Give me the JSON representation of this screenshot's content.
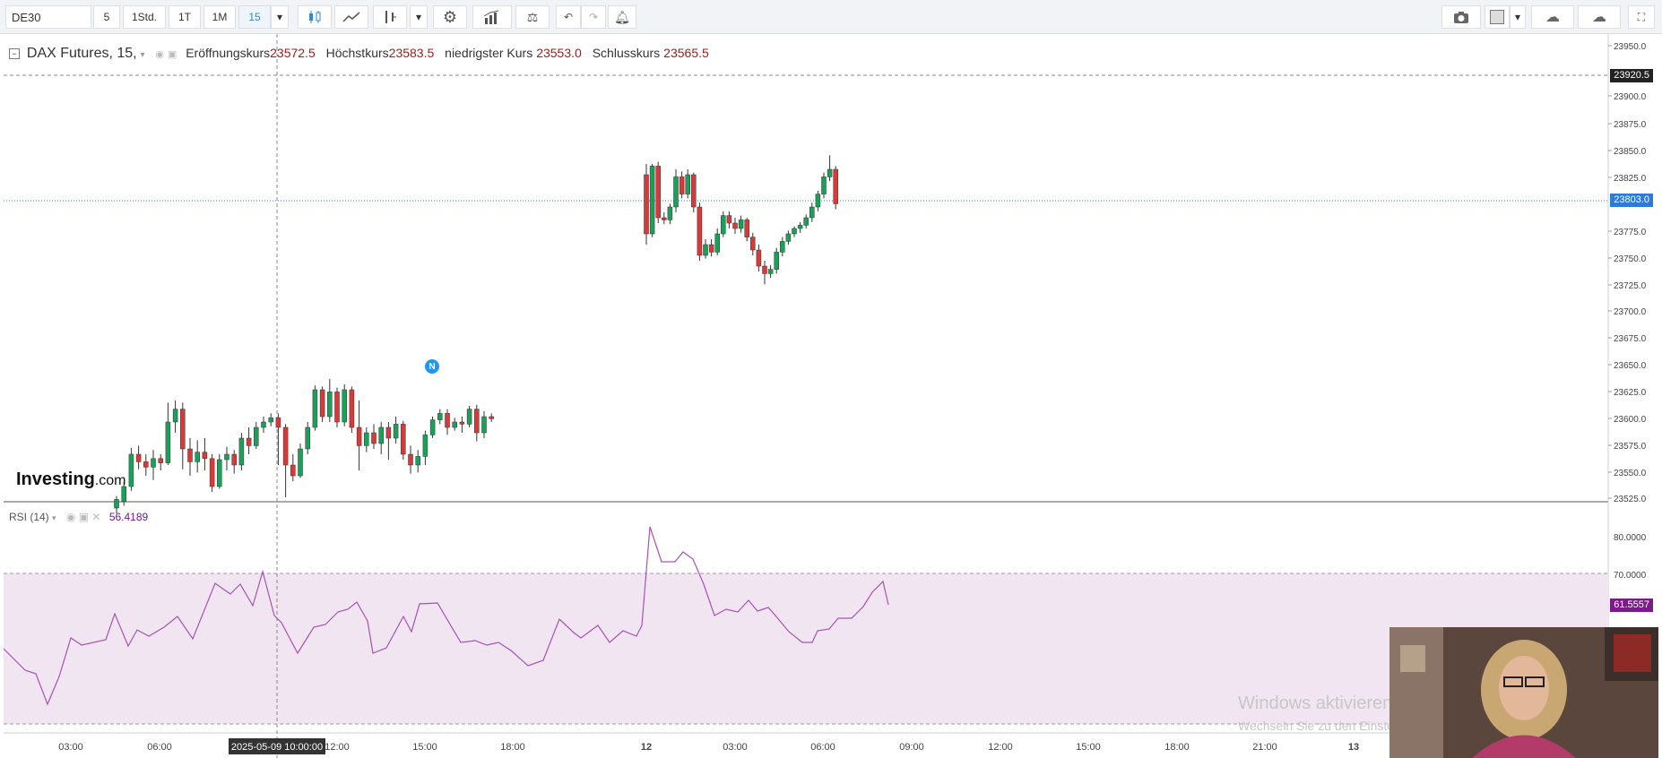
{
  "toolbar": {
    "symbol": "DE30",
    "intervals": [
      "5",
      "1Std.",
      "1T",
      "1M",
      "15"
    ],
    "active_interval": "15"
  },
  "legend": {
    "title": "DAX Futures, 15,",
    "open_label": "Eröffnungskurs",
    "open_value": "23572.5",
    "high_label": "Höchstkurs",
    "high_value": "23583.5",
    "low_label": "niedrigster Kurs",
    "low_value": "23553.0",
    "close_label": "Schlusskurs",
    "close_value": "23565.5"
  },
  "rsi": {
    "label": "RSI (14)",
    "value": "56.4189",
    "current_tag": "61.5557",
    "axis": [
      "80.0000",
      "70.0000"
    ]
  },
  "price_axis": {
    "ticks": [
      "23950.0",
      "23900.0",
      "23875.0",
      "23850.0",
      "23825.0",
      "23775.0",
      "23750.0",
      "23725.0",
      "23700.0",
      "23675.0",
      "23650.0",
      "23625.0",
      "23600.0",
      "23575.0",
      "23550.0",
      "23525.0"
    ],
    "tag_top": "23920.5",
    "tag_current": "23803.0"
  },
  "time_axis": {
    "labels": [
      "03:00",
      "06:00",
      "12:00",
      "15:00",
      "18:00",
      "12",
      "03:00",
      "06:00",
      "09:00",
      "12:00",
      "15:00",
      "18:00",
      "21:00",
      "13"
    ],
    "crosshair_time": "2025-05-09 10:00:00"
  },
  "branding": {
    "logo": "Investing",
    "logo_suffix": ".com",
    "news_marker": "N"
  },
  "watermark": {
    "title": "Windows aktivieren",
    "subtitle": "Wechseln Sie zu den Einstellungen, um Windows zu aktivieren."
  },
  "colors": {
    "up": "#1ba05a",
    "down": "#d73a3a",
    "rsi_line": "#a553b4",
    "rsi_band": "#f2e5f2",
    "current_tag": "#2f7ad8"
  }
}
